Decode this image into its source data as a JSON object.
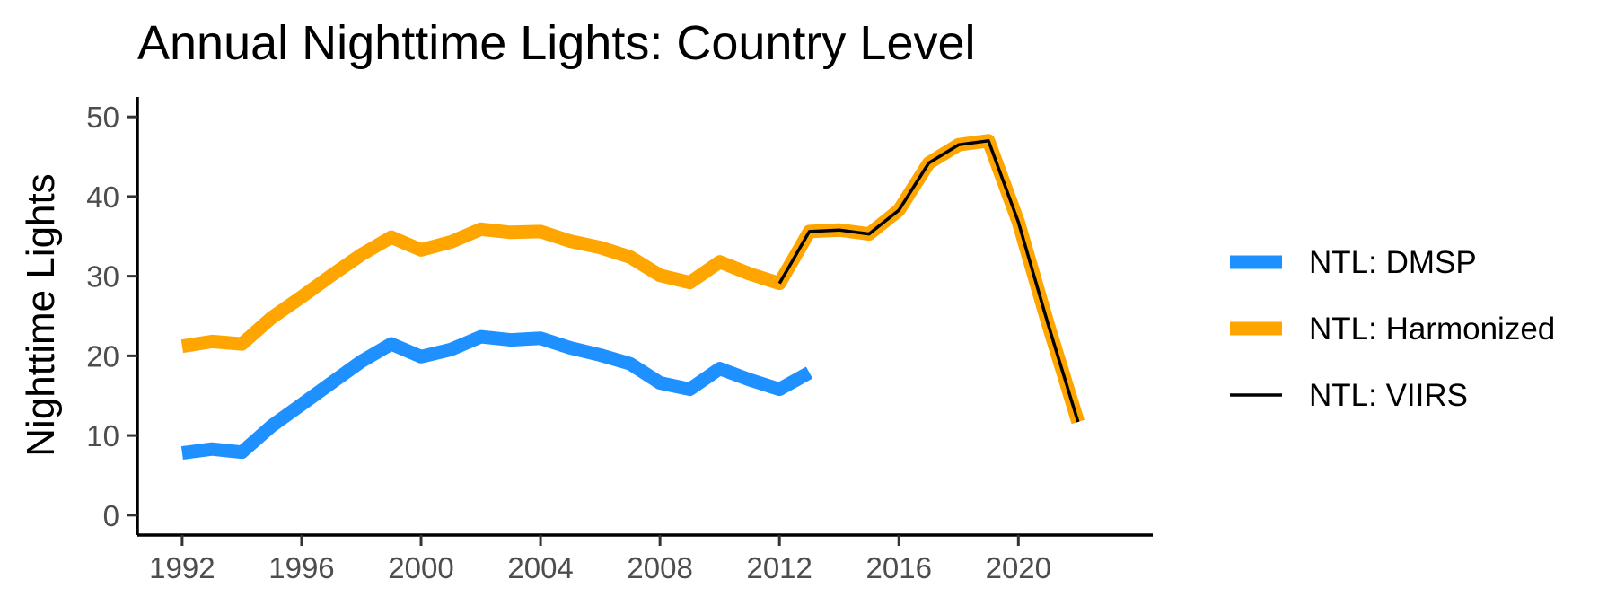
{
  "chart_data": {
    "type": "line",
    "title": "Annual Nighttime Lights: Country Level",
    "xlabel": "",
    "ylabel": "Nighttime Lights",
    "xlim": [
      1990.5,
      2024.5
    ],
    "ylim": [
      -2.5,
      52.5
    ],
    "xticks": [
      1992,
      1996,
      2000,
      2004,
      2008,
      2012,
      2016,
      2020
    ],
    "yticks": [
      0,
      10,
      20,
      30,
      40,
      50
    ],
    "grid": false,
    "legend_position": "right",
    "series": [
      {
        "name": "NTL: DMSP",
        "color": "#1E90FF",
        "x": [
          1992,
          1993,
          1994,
          1995,
          1996,
          1997,
          1998,
          1999,
          2000,
          2001,
          2002,
          2003,
          2004,
          2005,
          2006,
          2007,
          2008,
          2009,
          2010,
          2011,
          2012,
          2013
        ],
        "y": [
          7.8,
          8.3,
          7.9,
          11.2,
          13.9,
          16.6,
          19.3,
          21.5,
          19.9,
          20.8,
          22.4,
          22.0,
          22.2,
          21.0,
          20.1,
          19.0,
          16.6,
          15.8,
          18.4,
          17.0,
          15.8,
          17.9
        ]
      },
      {
        "name": "NTL: Harmonized",
        "color": "#FFA500",
        "x": [
          1992,
          1993,
          1994,
          1995,
          1996,
          1997,
          1998,
          1999,
          2000,
          2001,
          2002,
          2003,
          2004,
          2005,
          2006,
          2007,
          2008,
          2009,
          2010,
          2011,
          2012,
          2013,
          2014,
          2015,
          2016,
          2017,
          2018,
          2019,
          2020,
          2021,
          2022
        ],
        "y": [
          21.2,
          21.8,
          21.5,
          24.8,
          27.4,
          30.1,
          32.7,
          34.9,
          33.3,
          34.3,
          35.9,
          35.5,
          35.6,
          34.4,
          33.6,
          32.4,
          30.1,
          29.2,
          31.8,
          30.3,
          29.1,
          35.6,
          35.8,
          35.3,
          38.3,
          44.2,
          46.5,
          47.0,
          36.8,
          23.9,
          11.7
        ]
      },
      {
        "name": "NTL: VIIRS",
        "color": "#000000",
        "x": [
          2012,
          2013,
          2014,
          2015,
          2016,
          2017,
          2018,
          2019,
          2020,
          2021,
          2022
        ],
        "y": [
          29.1,
          35.6,
          35.8,
          35.3,
          38.3,
          44.2,
          46.5,
          47.0,
          36.8,
          23.9,
          11.7
        ]
      }
    ]
  }
}
